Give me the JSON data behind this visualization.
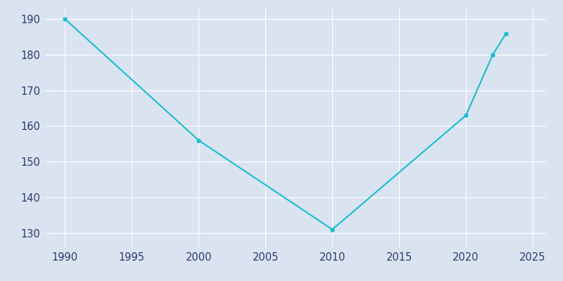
{
  "years": [
    1990,
    2000,
    2010,
    2020,
    2022,
    2023
  ],
  "population": [
    190,
    156,
    131,
    163,
    180,
    186
  ],
  "line_color": "#17BECF",
  "marker_color": "#17BECF",
  "axes_facecolor": "#DAE3F0",
  "figure_facecolor": "#DAE3F0",
  "tick_label_color": "#2E3A6E",
  "grid_color": "#FFFFFF",
  "xlim": [
    1988.5,
    2026
  ],
  "ylim": [
    126,
    193
  ],
  "xticks": [
    1990,
    1995,
    2000,
    2005,
    2010,
    2015,
    2020,
    2025
  ],
  "yticks": [
    130,
    140,
    150,
    160,
    170,
    180,
    190
  ],
  "figsize": [
    8.0,
    4.0
  ],
  "dpi": 100
}
